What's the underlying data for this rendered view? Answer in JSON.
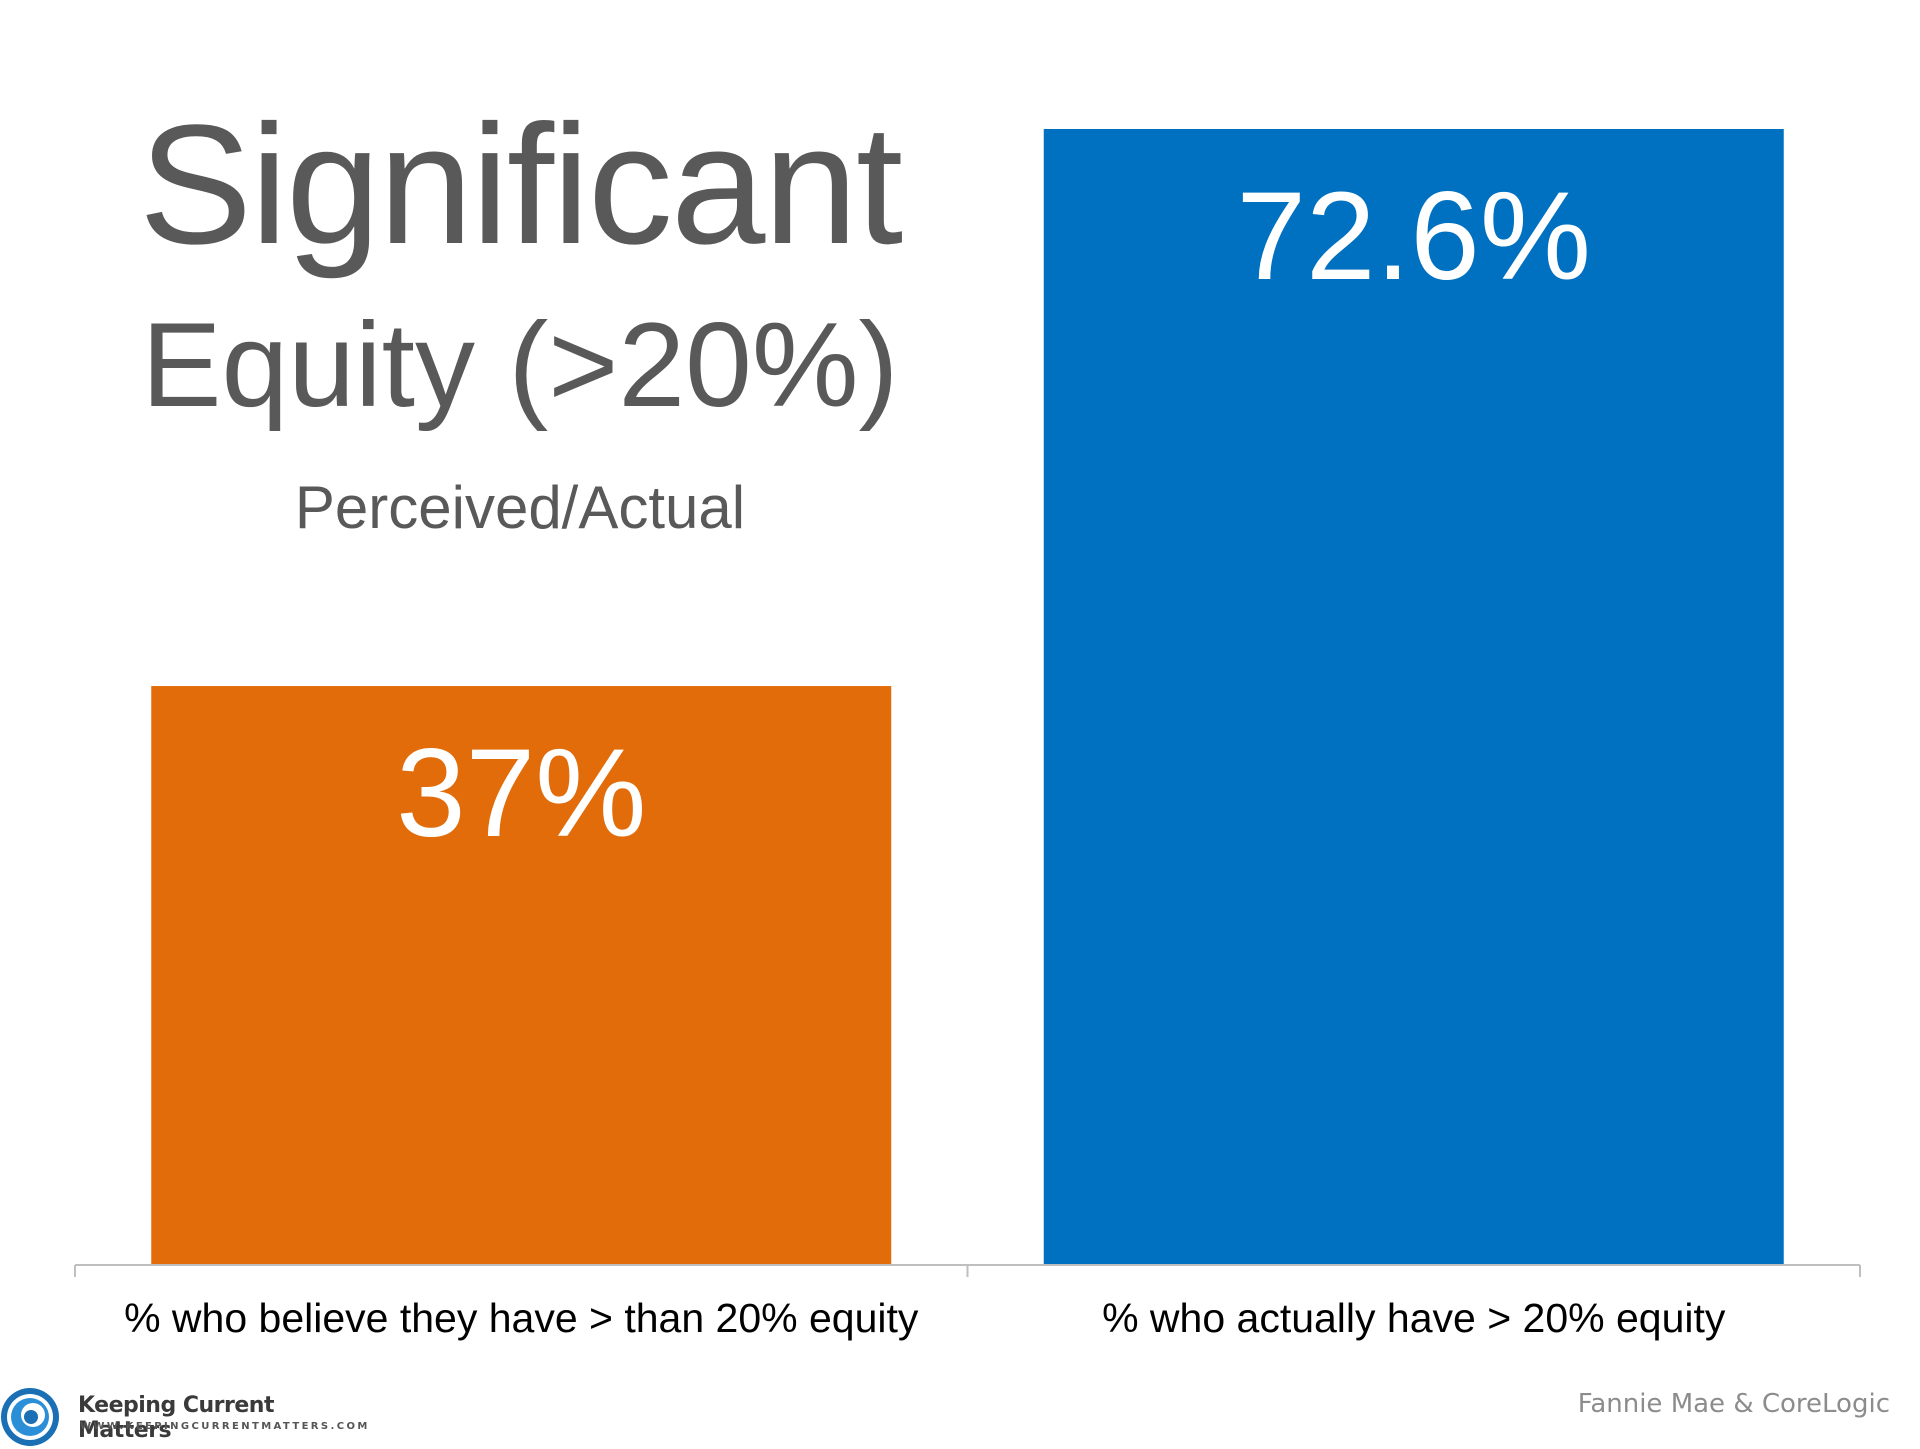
{
  "chart_data": {
    "type": "bar",
    "title": "Significant",
    "subtitle": "Equity (>20%)",
    "note": "Perceived/Actual",
    "categories": [
      "% who believe they have > than 20% equity",
      "% who actually have > 20% equity"
    ],
    "values": [
      37,
      72.6
    ],
    "data_labels": [
      "37%",
      "72.6%"
    ],
    "colors": [
      "#E36C0A",
      "#0070C0"
    ],
    "ylim": [
      0,
      72.6
    ],
    "grid": false,
    "legend": "none"
  },
  "source": "Fannie Mae & CoreLogic",
  "logo": {
    "name": "Keeping Current Matters",
    "url": "WWW.KEEPINGCURRENTMATTERS.COM",
    "icon": "swirl-logo-icon"
  }
}
